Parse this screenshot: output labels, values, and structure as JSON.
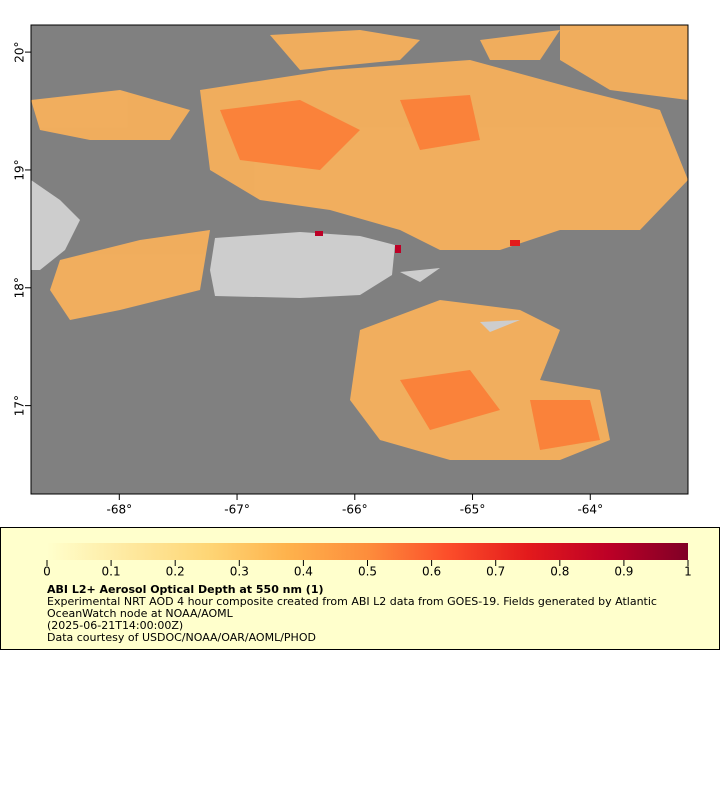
{
  "map": {
    "xlim": [
      -68.75,
      -63.17
    ],
    "ylim": [
      16.25,
      20.23
    ],
    "xticks": [
      {
        "value": -68,
        "label": "-68°"
      },
      {
        "value": -67,
        "label": "-67°"
      },
      {
        "value": -66,
        "label": "-66°"
      },
      {
        "value": -65,
        "label": "-65°"
      },
      {
        "value": -64,
        "label": "-64°"
      }
    ],
    "yticks": [
      {
        "value": 17,
        "label": "17°"
      },
      {
        "value": 18,
        "label": "18°"
      },
      {
        "value": 19,
        "label": "19°"
      },
      {
        "value": 20,
        "label": "20°"
      }
    ]
  },
  "legend": {
    "colorbar": {
      "range": [
        0,
        1
      ],
      "ticks": [
        0,
        0.1,
        0.2,
        0.3,
        0.4,
        0.5,
        0.6,
        0.7,
        0.8,
        0.9,
        1
      ],
      "colors": [
        "#ffffcc",
        "#fee9a0",
        "#fed676",
        "#feb24c",
        "#fd8d3c",
        "#fc4e2a",
        "#e31a1c",
        "#bd0026",
        "#800026"
      ]
    },
    "title": "ABI L2+ Aerosol Optical Depth at 550 nm (1)",
    "lines": [
      "Experimental NRT AOD 4 hour composite created from ABI L2 data from GOES-19. Fields generated by Atlantic",
      "OceanWatch node at NOAA/AOML",
      "(2025-06-21T14:00:00Z)",
      "Data courtesy of USDOC/NOAA/OAR/AOML/PHOD"
    ]
  }
}
